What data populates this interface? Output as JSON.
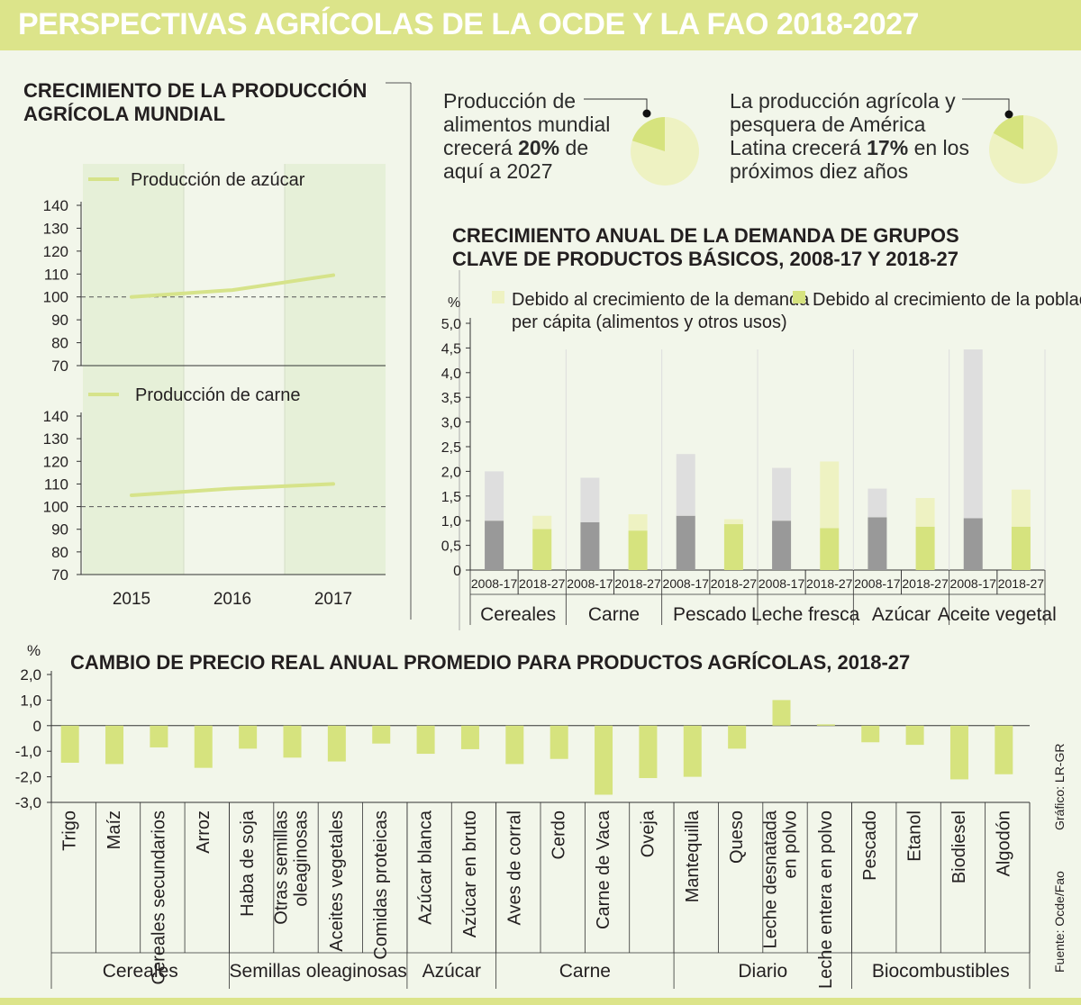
{
  "title": "PERSPECTIVAS AGRÍCOLAS DE LA OCDE Y LA FAO 2018-2027",
  "facts": [
    {
      "before": "Producción de alimentos mundial crecerá ",
      "bold": "20%",
      "after": " de aquí a 2027",
      "share": 0.2
    },
    {
      "before": "La producción agrícola y pesquera de América Latina crecerá ",
      "bold": "17%",
      "after": " en los próximos diez años",
      "share": 0.17
    }
  ],
  "colors": {
    "banner": "#dce48a",
    "line": "#d6e38a",
    "bar_dark": "#999999",
    "bar_light": "#dedede",
    "bar_green": "#d6e37e",
    "bar_paleg": "#eef2c2",
    "shade": "#e6f0d8"
  },
  "credits": {
    "grafico": "Gráfico: LR-GR",
    "fuente": "Fuente: Ocde/Fao"
  },
  "chart_data": [
    {
      "type": "line",
      "title": "CRECIMIENTO DE LA PRODUCCIÓN AGRÍCOLA MUNDIAL",
      "panels": [
        {
          "series_name": "Producción de azúcar",
          "x": [
            2015,
            2016,
            2017
          ],
          "y": [
            100,
            103,
            109.5
          ],
          "ylim": [
            70,
            140
          ],
          "yticks": [
            "140",
            "130",
            "120",
            "110",
            "100",
            "90",
            "80",
            "70"
          ],
          "baseline": 100
        },
        {
          "series_name": "Producción de carne",
          "x": [
            2015,
            2016,
            2017
          ],
          "y": [
            105,
            108,
            110
          ],
          "ylim": [
            70,
            140
          ],
          "yticks": [
            "140",
            "130",
            "120",
            "110",
            "100",
            "90",
            "80",
            "70"
          ],
          "baseline": 100
        }
      ],
      "xticks": [
        "2015",
        "2016",
        "2017"
      ]
    },
    {
      "type": "bar",
      "stacked": true,
      "title": "CRECIMIENTO ANUAL DE LA DEMANDA DE GRUPOS CLAVE DE PRODUCTOS BÁSICOS, 2008-17 Y 2018-27",
      "ylabel": "%",
      "ylim": [
        0,
        5
      ],
      "yticks": [
        "5,0",
        "4,5",
        "4,0",
        "3,5",
        "3,0",
        "2,5",
        "2,0",
        "1,5",
        "1,0",
        "0,5",
        "0"
      ],
      "legend": [
        "Debido al crecimiento de la demanda per cápita (alimentos y otros usos)",
        "Debido al crecimiento de la población"
      ],
      "groups": [
        {
          "name": "Cereales",
          "bars": [
            {
              "period": "2008-17",
              "poblacion": 1.0,
              "per_capita": 1.0
            },
            {
              "period": "2018-27",
              "poblacion": 0.83,
              "per_capita": 0.27
            }
          ]
        },
        {
          "name": "Carne",
          "bars": [
            {
              "period": "2008-17",
              "poblacion": 0.97,
              "per_capita": 0.9
            },
            {
              "period": "2018-27",
              "poblacion": 0.8,
              "per_capita": 0.33
            }
          ]
        },
        {
          "name": "Pescado",
          "bars": [
            {
              "period": "2008-17",
              "poblacion": 1.1,
              "per_capita": 1.25
            },
            {
              "period": "2018-27",
              "poblacion": 0.93,
              "per_capita": 0.1
            }
          ]
        },
        {
          "name": "Leche fresca",
          "bars": [
            {
              "period": "2008-17",
              "poblacion": 1.0,
              "per_capita": 1.07
            },
            {
              "period": "2018-27",
              "poblacion": 0.85,
              "per_capita": 1.35
            }
          ]
        },
        {
          "name": "Azúcar",
          "bars": [
            {
              "period": "2008-17",
              "poblacion": 1.07,
              "per_capita": 0.58
            },
            {
              "period": "2018-27",
              "poblacion": 0.88,
              "per_capita": 0.58
            }
          ]
        },
        {
          "name": "Aceite vegetal",
          "bars": [
            {
              "period": "2008-17",
              "poblacion": 1.05,
              "per_capita": 3.42
            },
            {
              "period": "2018-27",
              "poblacion": 0.88,
              "per_capita": 0.75
            }
          ]
        }
      ]
    },
    {
      "type": "bar",
      "title": "CAMBIO DE PRECIO REAL ANUAL PROMEDIO PARA PRODUCTOS AGRÍCOLAS, 2018-27",
      "ylabel": "%",
      "ylim": [
        -3,
        2
      ],
      "yticks": [
        "2,0",
        "1,0",
        "0",
        "-1,0",
        "-2,0",
        "-3,0"
      ],
      "groups": [
        {
          "name": "Cereales",
          "items": [
            {
              "label": "Trigo",
              "value": -1.45
            },
            {
              "label": "Maíz",
              "value": -1.5
            },
            {
              "label": "Cereales secundarios",
              "value": -0.85
            },
            {
              "label": "Arroz",
              "value": -1.65
            }
          ]
        },
        {
          "name": "Semillas oleaginosas",
          "items": [
            {
              "label": "Haba de soja",
              "value": -0.9
            },
            {
              "label": "Otras semillas oleaginosas",
              "value": -1.25
            },
            {
              "label": "Aceites vegetales",
              "value": -1.4
            },
            {
              "label": "Comidas proteicas",
              "value": -0.7
            }
          ]
        },
        {
          "name": "Azúcar",
          "items": [
            {
              "label": "Azúcar blanca",
              "value": -1.1
            },
            {
              "label": "Azúcar en bruto",
              "value": -0.92
            }
          ]
        },
        {
          "name": "Carne",
          "items": [
            {
              "label": "Aves de corral",
              "value": -1.5
            },
            {
              "label": "Cerdo",
              "value": -1.3
            },
            {
              "label": "Carne de Vaca",
              "value": -2.7
            },
            {
              "label": "Oveja",
              "value": -2.05
            }
          ]
        },
        {
          "name": "Diario",
          "items": [
            {
              "label": "Mantequilla",
              "value": -2.0
            },
            {
              "label": "Queso",
              "value": -0.9
            },
            {
              "label": "Leche desnatada en polvo",
              "value": 1.0
            },
            {
              "label": "Leche entera en polvo",
              "value": 0.05
            }
          ]
        },
        {
          "name": "Biocombustibles",
          "items": [
            {
              "label": "Pescado",
              "value": -0.65
            },
            {
              "label": "Etanol",
              "value": -0.75
            },
            {
              "label": "Biodiesel",
              "value": -2.1
            },
            {
              "label": "Algodón",
              "value": -1.9
            }
          ]
        }
      ]
    }
  ]
}
